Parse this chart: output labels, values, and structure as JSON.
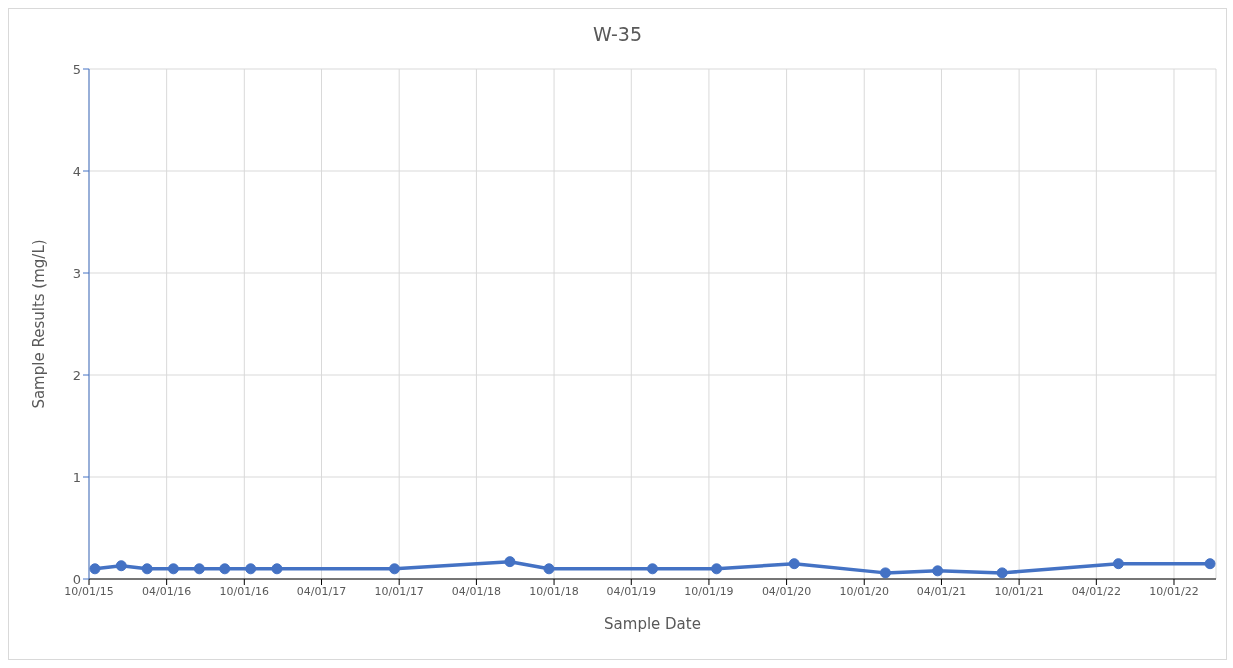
{
  "chart_data": {
    "type": "line",
    "title": "W-35",
    "xlabel": "Sample Date",
    "ylabel": "Sample Results (mg/L)",
    "x": [
      "2015-10-15",
      "2015-12-16",
      "2016-02-15",
      "2016-04-17",
      "2016-06-17",
      "2016-08-16",
      "2016-10-16",
      "2016-12-17",
      "2017-09-20",
      "2018-06-19",
      "2018-09-19",
      "2019-05-21",
      "2019-10-19",
      "2020-04-19",
      "2020-11-20",
      "2021-03-23",
      "2021-08-22",
      "2022-05-23",
      "2022-12-25"
    ],
    "series": [
      {
        "color": "#4472c4",
        "values": [
          0.1,
          0.13,
          0.1,
          0.1,
          0.1,
          0.1,
          0.1,
          0.1,
          0.1,
          0.17,
          0.1,
          0.1,
          0.1,
          0.15,
          0.06,
          0.08,
          0.06,
          0.15,
          0.15
        ]
      }
    ],
    "xlim": [
      "2015-10-01",
      "2023-01-08"
    ],
    "xticks": [
      {
        "value": "2015-10-01",
        "label": "10/01/15"
      },
      {
        "value": "2016-04-01",
        "label": "04/01/16"
      },
      {
        "value": "2016-10-01",
        "label": "10/01/16"
      },
      {
        "value": "2017-04-01",
        "label": "04/01/17"
      },
      {
        "value": "2017-10-01",
        "label": "10/01/17"
      },
      {
        "value": "2018-04-01",
        "label": "04/01/18"
      },
      {
        "value": "2018-10-01",
        "label": "10/01/18"
      },
      {
        "value": "2019-04-01",
        "label": "04/01/19"
      },
      {
        "value": "2019-10-01",
        "label": "10/01/19"
      },
      {
        "value": "2020-04-01",
        "label": "04/01/20"
      },
      {
        "value": "2020-10-01",
        "label": "10/01/20"
      },
      {
        "value": "2021-04-01",
        "label": "04/01/21"
      },
      {
        "value": "2021-10-01",
        "label": "10/01/21"
      },
      {
        "value": "2022-04-01",
        "label": "04/01/22"
      },
      {
        "value": "2022-10-01",
        "label": "10/01/22"
      }
    ],
    "ylim": [
      0,
      5
    ],
    "yticks": [
      0,
      1,
      2,
      3,
      4,
      5
    ],
    "grid": true,
    "marker": "circle",
    "line_style": "solid"
  }
}
